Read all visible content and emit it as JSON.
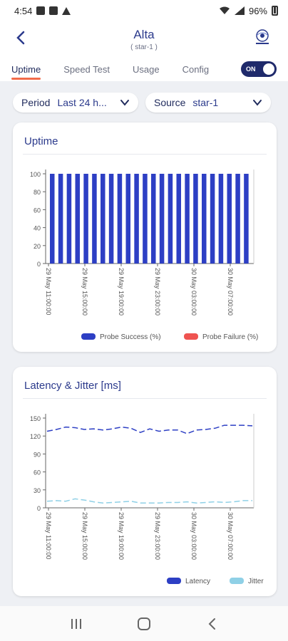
{
  "status_bar": {
    "time": "4:54",
    "battery": "96%"
  },
  "header": {
    "title": "Alta",
    "subtitle": "( star-1 )"
  },
  "tabs": [
    {
      "label": "Uptime",
      "active": true
    },
    {
      "label": "Speed Test",
      "active": false
    },
    {
      "label": "Usage",
      "active": false
    },
    {
      "label": "Config",
      "active": false
    }
  ],
  "toggle": {
    "label": "ON"
  },
  "filters": {
    "period_label": "Period",
    "period_value": "Last 24 h...",
    "source_label": "Source",
    "source_value": "star-1"
  },
  "colors": {
    "accent": "#f26b4a",
    "latency": "#2d3fc4",
    "jitter": "#8fd0e6",
    "failure": "#ef5350",
    "success": "#2d3fc4"
  },
  "chart_data": [
    {
      "type": "bar",
      "title": "Uptime",
      "ylim": [
        0,
        100
      ],
      "yticks": [
        0,
        20,
        40,
        60,
        80,
        100
      ],
      "xtick_labels": [
        "29 May 11:00:00",
        "29 May 15:00:00",
        "29 May 19:00:00",
        "29 May 23:00:00",
        "30 May 03:00:00",
        "30 May 07:00:00"
      ],
      "series": [
        {
          "name": "Probe Success (%)",
          "values": [
            100,
            100,
            100,
            100,
            100,
            100,
            100,
            100,
            100,
            100,
            100,
            100,
            100,
            100,
            100,
            100,
            100,
            100,
            100,
            100,
            100,
            100,
            100,
            100
          ]
        },
        {
          "name": "Probe Failure (%)",
          "values": [
            0,
            0,
            0,
            0,
            0,
            0,
            0,
            0,
            0,
            0,
            0,
            0,
            0,
            0,
            0,
            0,
            0,
            0,
            0,
            0,
            0,
            0,
            0,
            0
          ]
        }
      ],
      "legend": "bottom-right"
    },
    {
      "type": "line",
      "title": "Latency & Jitter [ms]",
      "ylim": [
        0,
        150
      ],
      "yticks": [
        0,
        30,
        60,
        90,
        120,
        150
      ],
      "xtick_labels": [
        "29 May 11:00:00",
        "29 May 15:00:00",
        "29 May 19:00:00",
        "29 May 23:00:00",
        "30 May 03:00:00",
        "30 May 07:00:00"
      ],
      "series": [
        {
          "name": "Latency",
          "values": [
            128,
            131,
            135,
            134,
            131,
            132,
            130,
            132,
            135,
            133,
            126,
            132,
            128,
            130,
            130,
            124,
            130,
            131,
            133,
            138,
            138,
            138,
            137
          ]
        },
        {
          "name": "Jitter",
          "values": [
            11,
            12,
            11,
            15,
            13,
            10,
            8,
            9,
            10,
            11,
            8,
            8,
            8,
            9,
            9,
            10,
            8,
            9,
            10,
            9,
            10,
            12,
            12
          ]
        }
      ],
      "legend": "bottom-right"
    }
  ]
}
